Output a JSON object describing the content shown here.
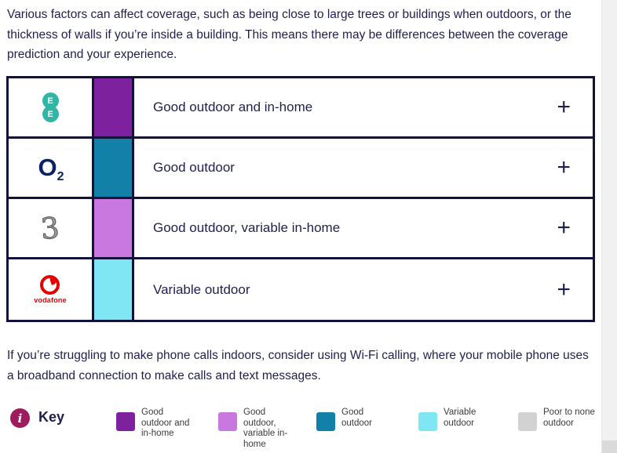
{
  "intro": {
    "text": "Various factors can affect coverage, such as being close to large trees or buildings when outdoors, or the thickness of walls if you’re inside a building. This means there may be differences between the coverage prediction and your experience."
  },
  "wifi_note": {
    "text": "If you’re struggling to make phone calls indoors, consider using Wi-Fi calling, where your mobile phone uses a broadband connection to make calls and text messages."
  },
  "table": {
    "rows": [
      {
        "operator": "EE",
        "coverage": "Good outdoor and in-home",
        "swatch_color": "#7D219E",
        "expand_label": "+"
      },
      {
        "operator": "O2",
        "coverage": "Good outdoor",
        "swatch_color": "#1380A8",
        "expand_label": "+"
      },
      {
        "operator": "Three",
        "coverage": "Good outdoor, variable in-home",
        "swatch_color": "#C978E0",
        "expand_label": "+"
      },
      {
        "operator": "Vodafone",
        "coverage": "Variable outdoor",
        "swatch_color": "#7FE6F3",
        "expand_label": "+"
      }
    ]
  },
  "logos": {
    "ee_letter": "E",
    "o2_main": "O",
    "o2_sub": "2",
    "three_glyph": "3",
    "vodafone_wordmark": "vodafone"
  },
  "key": {
    "title": "Key",
    "info_icon_glyph": "i",
    "items": [
      {
        "label": "Good outdoor and in-home",
        "color": "#7D219E"
      },
      {
        "label": "Good outdoor, variable in-home",
        "color": "#C978E0"
      },
      {
        "label": "Good outdoor",
        "color": "#1380A8"
      },
      {
        "label": "Variable outdoor",
        "color": "#7FE6F3"
      },
      {
        "label": "Poor to none outdoor",
        "color": "#D2D2D2"
      }
    ]
  },
  "colors": {
    "text_navy": "#1F1F4E",
    "table_border": "#13123B",
    "info_badge": "#9E1B5E",
    "ee_teal": "#31B5A5",
    "o2_navy": "#0B2265",
    "three_gray": "#5A5A5A",
    "vodafone_red": "#E60000",
    "legend_text": "#3B3B3B",
    "scroll_track": "#F1F1F1"
  }
}
